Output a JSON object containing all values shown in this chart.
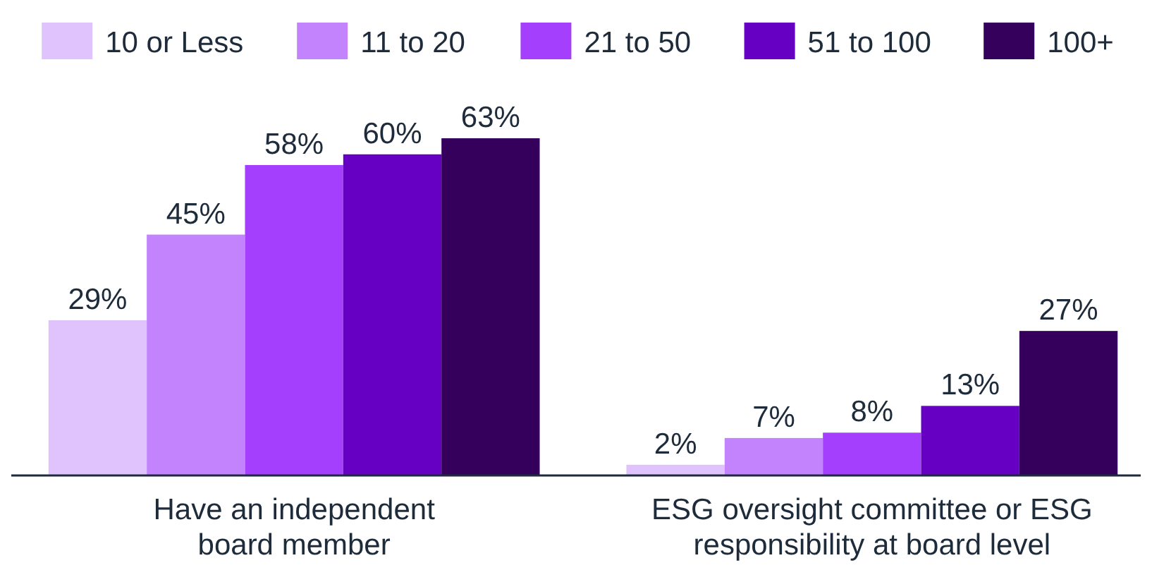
{
  "chart_data": {
    "type": "bar",
    "categories": [
      "Have an independent board member",
      "ESG oversight committee or ESG responsibility at board level"
    ],
    "series": [
      {
        "name": "10 or Less",
        "color": "#e0c3fc",
        "values": [
          29,
          2
        ],
        "value_labels": [
          "29%",
          "2%"
        ]
      },
      {
        "name": "11 to 20",
        "color": "#c283fd",
        "values": [
          45,
          7
        ],
        "value_labels": [
          "45%",
          "7%"
        ]
      },
      {
        "name": "21 to 50",
        "color": "#a43ffe",
        "values": [
          58,
          8
        ],
        "value_labels": [
          "58%",
          "8%"
        ]
      },
      {
        "name": "51 to 100",
        "color": "#6600c2",
        "values": [
          60,
          13
        ],
        "value_labels": [
          "60%",
          "13%"
        ]
      },
      {
        "name": "100+",
        "color": "#35005c",
        "values": [
          63,
          27
        ],
        "value_labels": [
          "63%",
          "27%"
        ]
      }
    ],
    "legend": "top"
  }
}
